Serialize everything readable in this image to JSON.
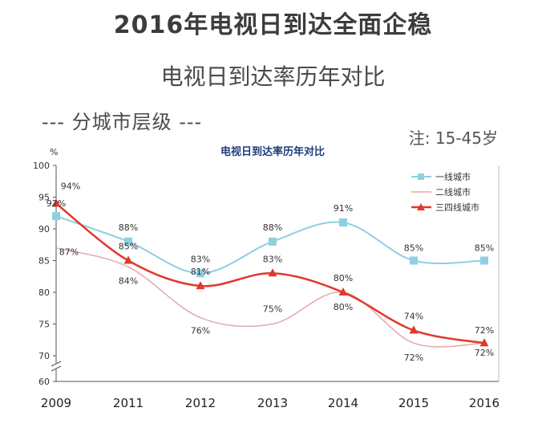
{
  "header": {
    "main_title": "2016年电视日到达全面企稳",
    "subtitle": "电视日到达率历年对比",
    "section_label": "---  分城市层级  ---",
    "note": "注:  15-45岁"
  },
  "colors": {
    "tier1": "#8ecfe3",
    "tier2": "#e2a9a9",
    "tier34": "#e0392b"
  },
  "chart_data": {
    "type": "line",
    "title": "电视日到达率历年对比",
    "ylabel": "%",
    "xlabel": "",
    "categories": [
      "2009",
      "2011",
      "2012",
      "2013",
      "2014",
      "2015",
      "2016"
    ],
    "ylim": [
      60,
      100
    ],
    "yticks": [
      60,
      70,
      75,
      80,
      85,
      90,
      95,
      100
    ],
    "axis_break": true,
    "grid": false,
    "legend_position": "top-right",
    "series": [
      {
        "name": "一线城市",
        "values": [
          92,
          88,
          83,
          88,
          91,
          85,
          85
        ],
        "labels": [
          "92%",
          "88%",
          "83%",
          "88%",
          "91%",
          "85%",
          "85%"
        ],
        "marker": "square"
      },
      {
        "name": "二线城市",
        "values": [
          87,
          84,
          76,
          75,
          80,
          72,
          72
        ],
        "labels": [
          "87%",
          "84%",
          "76%",
          "75%",
          "80%",
          "72%",
          "72%"
        ],
        "marker": "none"
      },
      {
        "name": "三四线城市",
        "values": [
          94,
          85,
          81,
          83,
          80,
          74,
          72
        ],
        "labels": [
          "94%",
          "85%",
          "81%",
          "83%",
          "80%",
          "74%",
          "72%"
        ],
        "marker": "triangle"
      }
    ]
  }
}
